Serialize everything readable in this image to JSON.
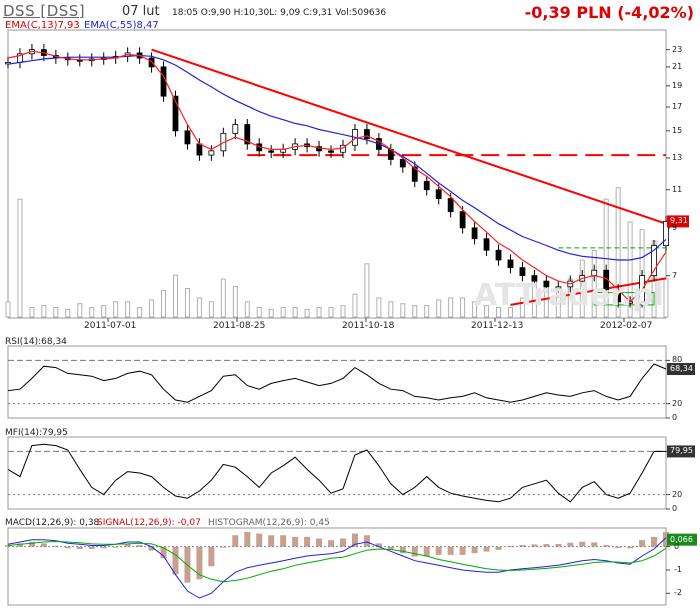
{
  "header": {
    "ticker": "DSS [DSS]",
    "date": "07 lut",
    "ohlc": "18:05  O:9,90 H:10,30L: 9,09 C:9,31 Vol:509636",
    "change": "-0,39 PLN (-4,02%)",
    "ema13_label": "EMA(C,13)7,93",
    "ema55_label": "EMA(C,55)8,47"
  },
  "colors": {
    "price": "#000000",
    "ema13": "#ff2020",
    "ema55": "#2020e0",
    "trend": "#ff0000",
    "volume": "#b0b0b0",
    "green": "#00aa00",
    "histogram": "#c8a090"
  },
  "chart_data": [
    {
      "type": "line",
      "name": "price",
      "xticks": [
        "2011-07-01",
        "2011-08-25",
        "2011-10-18",
        "2011-12-13",
        "2012-02-07"
      ],
      "yticks": [
        23,
        21,
        19,
        17,
        15,
        13,
        11,
        9,
        7
      ],
      "last_value": "9,31",
      "scale": "log",
      "series": [
        {
          "name": "EMA(C,13)",
          "values": [
            22.0,
            22.3,
            22.8,
            22.6,
            22.2,
            21.9,
            21.8,
            21.8,
            21.9,
            22.0,
            22.4,
            22.3,
            21.6,
            20.0,
            17.5,
            15.5,
            14.0,
            13.6,
            14.1,
            14.5,
            14.2,
            13.8,
            13.6,
            13.6,
            13.8,
            13.9,
            13.7,
            13.6,
            13.7,
            14.4,
            14.6,
            14.2,
            13.6,
            13.0,
            12.3,
            11.8,
            11.2,
            10.6,
            9.9,
            9.3,
            8.8,
            8.3,
            8.0,
            7.6,
            7.3,
            7.0,
            6.8,
            6.7,
            6.9,
            7.0,
            6.9,
            6.5,
            6.1,
            6.5,
            7.2,
            7.93
          ]
        },
        {
          "name": "EMA(C,55)",
          "values": [
            21.3,
            21.5,
            21.7,
            21.9,
            22.0,
            22.1,
            22.1,
            22.1,
            22.1,
            22.1,
            22.2,
            22.3,
            22.2,
            21.8,
            21.2,
            20.4,
            19.6,
            18.9,
            18.2,
            17.6,
            17.1,
            16.6,
            16.2,
            15.9,
            15.6,
            15.4,
            15.1,
            14.9,
            14.7,
            14.5,
            14.3,
            14.0,
            13.6,
            13.1,
            12.6,
            12.0,
            11.4,
            10.9,
            10.4,
            10.0,
            9.6,
            9.2,
            8.9,
            8.6,
            8.4,
            8.2,
            8.0,
            7.85,
            7.75,
            7.7,
            7.65,
            7.6,
            7.6,
            7.7,
            8.0,
            8.47
          ]
        },
        {
          "name": "close",
          "values": [
            21.5,
            22.5,
            23.0,
            22.3,
            22.0,
            21.8,
            21.7,
            21.9,
            22.0,
            22.2,
            22.6,
            22.0,
            21.0,
            18.0,
            15.0,
            14.0,
            13.2,
            13.5,
            14.8,
            15.5,
            14.0,
            13.5,
            13.4,
            13.6,
            14.0,
            13.8,
            13.5,
            13.4,
            13.9,
            15.1,
            14.4,
            13.6,
            12.9,
            12.4,
            11.5,
            11.0,
            10.5,
            9.8,
            9.0,
            8.5,
            8.0,
            7.6,
            7.3,
            7.0,
            6.8,
            6.6,
            6.6,
            6.8,
            7.0,
            7.2,
            6.5,
            6.1,
            6.1,
            7.0,
            8.2,
            9.31
          ]
        }
      ],
      "trendlines": [
        {
          "name": "downtrend",
          "from": [
            12,
            23.0
          ],
          "to": [
            55,
            9.2
          ]
        },
        {
          "name": "support-upper",
          "from": [
            20,
            13.2
          ],
          "to": [
            55,
            13.2
          ]
        },
        {
          "name": "support-lower",
          "from": [
            42,
            6.0
          ],
          "to": [
            55,
            6.9
          ]
        }
      ],
      "volume": [
        0.08,
        0.62,
        0.05,
        0.06,
        0.05,
        0.04,
        0.07,
        0.05,
        0.06,
        0.08,
        0.08,
        0.05,
        0.09,
        0.14,
        0.22,
        0.15,
        0.1,
        0.08,
        0.2,
        0.16,
        0.08,
        0.05,
        0.04,
        0.05,
        0.05,
        0.04,
        0.05,
        0.05,
        0.06,
        0.12,
        0.28,
        0.1,
        0.08,
        0.07,
        0.06,
        0.06,
        0.09,
        0.1,
        0.1,
        0.08,
        0.06,
        0.05,
        0.05,
        0.1,
        0.2,
        0.18,
        0.15,
        0.2,
        0.3,
        0.35,
        0.62,
        0.68,
        0.5,
        0.46,
        0.4,
        0.2
      ]
    },
    {
      "type": "line",
      "name": "rsi",
      "label": "RSI(14):68,34",
      "last_value": "68,34",
      "yticks": [
        80,
        20,
        0
      ],
      "ylim": [
        0,
        100
      ],
      "values": [
        38,
        40,
        55,
        72,
        70,
        62,
        60,
        58,
        52,
        55,
        62,
        65,
        60,
        40,
        25,
        22,
        30,
        38,
        58,
        60,
        45,
        40,
        48,
        52,
        55,
        50,
        45,
        48,
        55,
        70,
        60,
        48,
        40,
        38,
        30,
        28,
        25,
        28,
        30,
        35,
        28,
        25,
        22,
        25,
        30,
        35,
        32,
        30,
        35,
        38,
        30,
        25,
        30,
        55,
        75,
        68
      ]
    },
    {
      "type": "line",
      "name": "mfi",
      "label": "MFI(14):79,95",
      "last_value": "79,95",
      "yticks": [
        80,
        20,
        0
      ],
      "ylim": [
        0,
        100
      ],
      "values": [
        55,
        45,
        88,
        90,
        88,
        82,
        55,
        30,
        20,
        40,
        52,
        50,
        45,
        30,
        18,
        15,
        25,
        40,
        62,
        58,
        45,
        30,
        50,
        60,
        72,
        55,
        40,
        22,
        28,
        75,
        82,
        60,
        35,
        20,
        30,
        45,
        30,
        22,
        18,
        15,
        12,
        10,
        15,
        30,
        35,
        40,
        22,
        10,
        30,
        38,
        20,
        15,
        22,
        50,
        80,
        79.95
      ]
    },
    {
      "type": "line",
      "name": "macd",
      "label_macd": "MACD(12,26,9): 0,38",
      "label_signal": "SIGNAL(12,26,9): -0,07",
      "label_histogram": "HISTOGRAM(12,26,9): 0,45",
      "last_value": "0,066",
      "yticks": [
        0,
        -1,
        -2
      ],
      "ylim": [
        -2.5,
        0.8
      ],
      "macd": [
        0.1,
        0.2,
        0.3,
        0.3,
        0.25,
        0.15,
        0.1,
        0.05,
        0.05,
        0.1,
        0.2,
        0.2,
        0.0,
        -0.4,
        -1.2,
        -1.9,
        -2.2,
        -2.0,
        -1.5,
        -1.1,
        -0.9,
        -0.8,
        -0.7,
        -0.6,
        -0.5,
        -0.4,
        -0.35,
        -0.3,
        -0.2,
        0.1,
        0.2,
        0.0,
        -0.2,
        -0.4,
        -0.6,
        -0.7,
        -0.8,
        -0.9,
        -1.0,
        -1.05,
        -1.1,
        -1.1,
        -1.0,
        -0.95,
        -0.9,
        -0.85,
        -0.8,
        -0.7,
        -0.6,
        -0.55,
        -0.6,
        -0.7,
        -0.75,
        -0.4,
        -0.1,
        0.38
      ],
      "signal": [
        0.05,
        0.1,
        0.15,
        0.2,
        0.22,
        0.2,
        0.17,
        0.12,
        0.1,
        0.1,
        0.12,
        0.15,
        0.12,
        -0.05,
        -0.35,
        -0.8,
        -1.2,
        -1.4,
        -1.5,
        -1.45,
        -1.35,
        -1.2,
        -1.05,
        -0.95,
        -0.8,
        -0.7,
        -0.6,
        -0.5,
        -0.45,
        -0.3,
        -0.15,
        -0.1,
        -0.12,
        -0.2,
        -0.3,
        -0.4,
        -0.55,
        -0.65,
        -0.75,
        -0.85,
        -0.95,
        -1.0,
        -1.02,
        -1.0,
        -0.97,
        -0.93,
        -0.88,
        -0.82,
        -0.75,
        -0.68,
        -0.65,
        -0.66,
        -0.7,
        -0.6,
        -0.4,
        -0.07
      ]
    }
  ]
}
